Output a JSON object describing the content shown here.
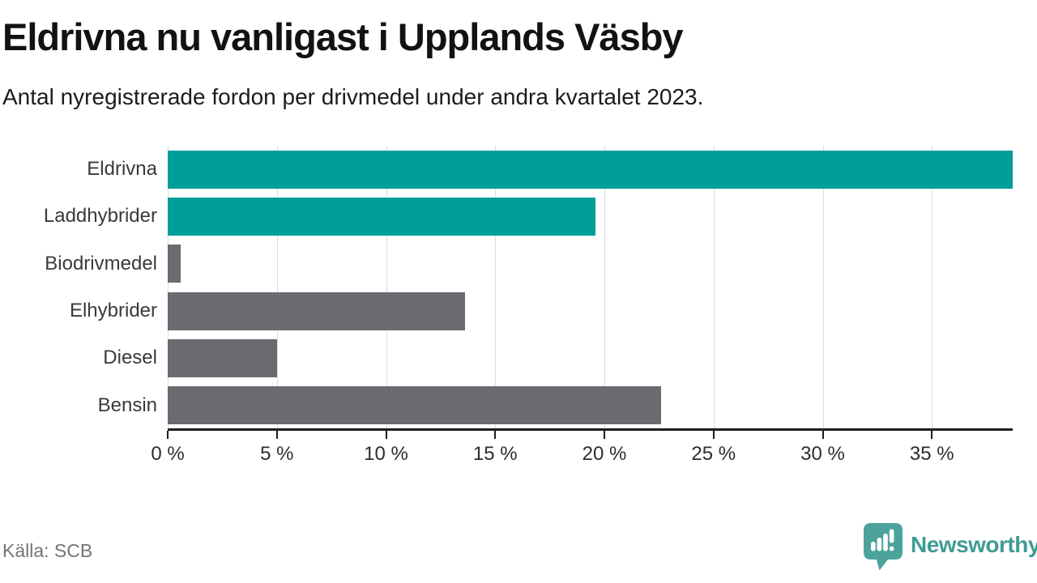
{
  "header": {
    "title": "Eldrivna nu vanligast i Upplands Väsby",
    "subtitle": "Antal nyregistrerade fordon per drivmedel under andra kvartalet 2023."
  },
  "chart_data": {
    "type": "bar",
    "orientation": "horizontal",
    "title": "Eldrivna nu vanligast i Upplands Väsby",
    "subtitle": "Antal nyregistrerade fordon per drivmedel under andra kvartalet 2023.",
    "categories": [
      "Eldrivna",
      "Laddhybrider",
      "Biodrivmedel",
      "Elhybrider",
      "Diesel",
      "Bensin"
    ],
    "values": [
      38.7,
      19.6,
      0.6,
      13.6,
      5.0,
      22.6
    ],
    "unit": "%",
    "xlim": [
      0,
      38.7
    ],
    "x_ticks": [
      0,
      5,
      10,
      15,
      20,
      25,
      30,
      35
    ],
    "x_tick_labels": [
      "0 %",
      "5 %",
      "10 %",
      "15 %",
      "20 %",
      "25 %",
      "30 %",
      "35 %"
    ],
    "bar_colors": [
      "#009e98",
      "#009e98",
      "#6b6a70",
      "#6b6a70",
      "#6b6a70",
      "#6b6a70"
    ],
    "highlight_color": "#009e98",
    "default_color": "#6b6a70",
    "gridline_color": "#dcdcdc",
    "axis_color": "#1e1e1e",
    "grid": true,
    "legend": "none"
  },
  "footer": {
    "source": "Källa: SCB",
    "brand_name": "Newsworthy",
    "brand_color": "#4ba39c"
  }
}
